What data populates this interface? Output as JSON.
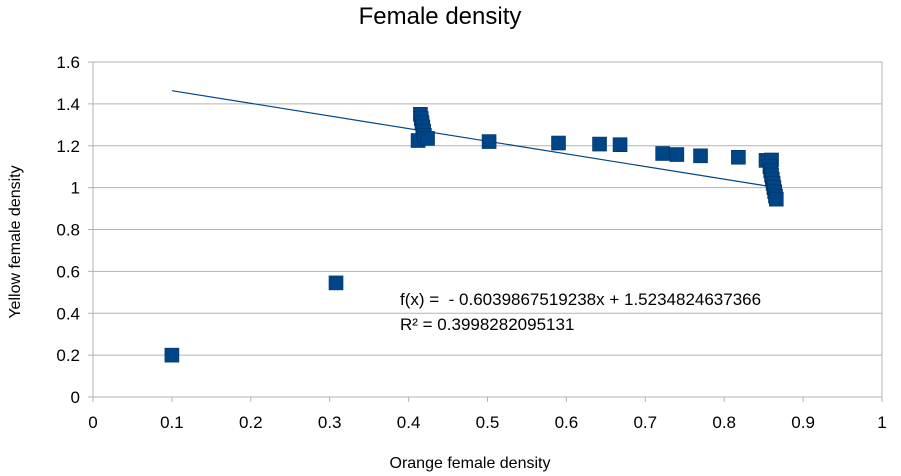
{
  "chart_data": {
    "type": "scatter",
    "title": "Female density",
    "xlabel": "Orange female density",
    "ylabel": "Yellow female density",
    "xlim": [
      0,
      1
    ],
    "ylim": [
      0,
      1.6
    ],
    "x_ticks": [
      "0",
      "0.1",
      "0.2",
      "0.3",
      "0.4",
      "0.5",
      "0.6",
      "0.7",
      "0.8",
      "0.9",
      "1"
    ],
    "y_ticks": [
      "0",
      "0.2",
      "0.4",
      "0.6",
      "0.8",
      "1",
      "1.2",
      "1.4",
      "1.6"
    ],
    "x_tick_values": [
      0,
      0.1,
      0.2,
      0.3,
      0.4,
      0.5,
      0.6,
      0.7,
      0.8,
      0.9,
      1
    ],
    "y_tick_values": [
      0,
      0.2,
      0.4,
      0.6,
      0.8,
      1,
      1.2,
      1.4,
      1.6
    ],
    "grid": "horizontal",
    "legend": "none",
    "marker": "square",
    "marker_color": "#004586",
    "series": [
      {
        "points": [
          [
            0.1,
            0.2
          ],
          [
            0.308,
            0.545
          ],
          [
            0.412,
            1.225
          ],
          [
            0.415,
            1.35
          ],
          [
            0.416,
            1.33
          ],
          [
            0.417,
            1.31
          ],
          [
            0.418,
            1.29
          ],
          [
            0.419,
            1.27
          ],
          [
            0.42,
            1.25
          ],
          [
            0.424,
            1.235
          ],
          [
            0.502,
            1.22
          ],
          [
            0.59,
            1.213
          ],
          [
            0.642,
            1.208
          ],
          [
            0.668,
            1.205
          ],
          [
            0.722,
            1.163
          ],
          [
            0.74,
            1.158
          ],
          [
            0.77,
            1.152
          ],
          [
            0.818,
            1.145
          ],
          [
            0.853,
            1.13
          ],
          [
            0.86,
            1.132
          ],
          [
            0.858,
            1.1
          ],
          [
            0.859,
            1.08
          ],
          [
            0.86,
            1.06
          ],
          [
            0.861,
            1.04
          ],
          [
            0.862,
            1.02
          ],
          [
            0.863,
            1.0
          ],
          [
            0.864,
            0.98
          ],
          [
            0.865,
            0.96
          ],
          [
            0.866,
            0.945
          ]
        ]
      }
    ],
    "trendline": {
      "slope": -0.6039867519238,
      "intercept": 1.5234824637366,
      "x_range": [
        0.1,
        0.864
      ],
      "color": "#004586",
      "equation": "f(x) =  - 0.6039867519238x + 1.5234824637366",
      "r_squared": "R² = 0.3998282095131"
    }
  }
}
